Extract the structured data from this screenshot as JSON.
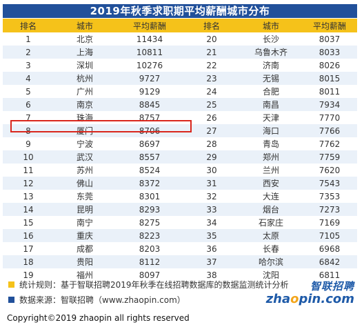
{
  "title": "2019年秋季求职期平均薪酬城市分布",
  "headers": {
    "rank": "排名",
    "city": "城市",
    "salary": "平均薪酬"
  },
  "rows": [
    {
      "l_rank": "1",
      "l_city": "北京",
      "l_salary": "11434",
      "r_rank": "20",
      "r_city": "长沙",
      "r_salary": "8037"
    },
    {
      "l_rank": "2",
      "l_city": "上海",
      "l_salary": "10811",
      "r_rank": "21",
      "r_city": "乌鲁木齐",
      "r_salary": "8033"
    },
    {
      "l_rank": "3",
      "l_city": "深圳",
      "l_salary": "10276",
      "r_rank": "22",
      "r_city": "济南",
      "r_salary": "8026"
    },
    {
      "l_rank": "4",
      "l_city": "杭州",
      "l_salary": "9727",
      "r_rank": "23",
      "r_city": "无锡",
      "r_salary": "8015"
    },
    {
      "l_rank": "5",
      "l_city": "广州",
      "l_salary": "9129",
      "r_rank": "24",
      "r_city": "合肥",
      "r_salary": "8011"
    },
    {
      "l_rank": "6",
      "l_city": "南京",
      "l_salary": "8845",
      "r_rank": "25",
      "r_city": "南昌",
      "r_salary": "7934"
    },
    {
      "l_rank": "7",
      "l_city": "珠海",
      "l_salary": "8757",
      "r_rank": "26",
      "r_city": "天津",
      "r_salary": "7770"
    },
    {
      "l_rank": "8",
      "l_city": "厦门",
      "l_salary": "8706",
      "r_rank": "27",
      "r_city": "海口",
      "r_salary": "7766"
    },
    {
      "l_rank": "9",
      "l_city": "宁波",
      "l_salary": "8697",
      "r_rank": "28",
      "r_city": "青岛",
      "r_salary": "7762"
    },
    {
      "l_rank": "10",
      "l_city": "武汉",
      "l_salary": "8557",
      "r_rank": "29",
      "r_city": "郑州",
      "r_salary": "7759"
    },
    {
      "l_rank": "11",
      "l_city": "苏州",
      "l_salary": "8524",
      "r_rank": "30",
      "r_city": "兰州",
      "r_salary": "7620"
    },
    {
      "l_rank": "12",
      "l_city": "佛山",
      "l_salary": "8372",
      "r_rank": "31",
      "r_city": "西安",
      "r_salary": "7543"
    },
    {
      "l_rank": "13",
      "l_city": "东莞",
      "l_salary": "8301",
      "r_rank": "32",
      "r_city": "大连",
      "r_salary": "7353"
    },
    {
      "l_rank": "14",
      "l_city": "昆明",
      "l_salary": "8293",
      "r_rank": "33",
      "r_city": "烟台",
      "r_salary": "7273"
    },
    {
      "l_rank": "15",
      "l_city": "南宁",
      "l_salary": "8275",
      "r_rank": "34",
      "r_city": "石家庄",
      "r_salary": "7169"
    },
    {
      "l_rank": "16",
      "l_city": "重庆",
      "l_salary": "8223",
      "r_rank": "35",
      "r_city": "太原",
      "r_salary": "7105"
    },
    {
      "l_rank": "17",
      "l_city": "成都",
      "l_salary": "8203",
      "r_rank": "36",
      "r_city": "长春",
      "r_salary": "6968"
    },
    {
      "l_rank": "18",
      "l_city": "贵阳",
      "l_salary": "8112",
      "r_rank": "37",
      "r_city": "哈尔滨",
      "r_salary": "6842"
    },
    {
      "l_rank": "19",
      "l_city": "福州",
      "l_salary": "8097",
      "r_rank": "38",
      "r_city": "沈阳",
      "r_salary": "6811"
    }
  ],
  "highlighted_row_rank": "8",
  "notes": [
    {
      "text": "统计规则：基于智联招聘2019年秋季在线招聘数据库的数据监测统计分析",
      "color": "#f5c21a"
    },
    {
      "text": "数据来源：智联招聘（www.zhaopin.com）",
      "color": "#21509a"
    }
  ],
  "logo": {
    "cn": "智联招聘",
    "en_pre": "zha",
    "en_o": "o",
    "en_post": "pin.com"
  },
  "copyright": "Copyright©2019 zhaopin all rights reserved",
  "colors": {
    "title_bg": "#21509a",
    "header_bg": "#f5c21a",
    "stripe": "#eaf1f9",
    "highlight": "#d9261c"
  }
}
